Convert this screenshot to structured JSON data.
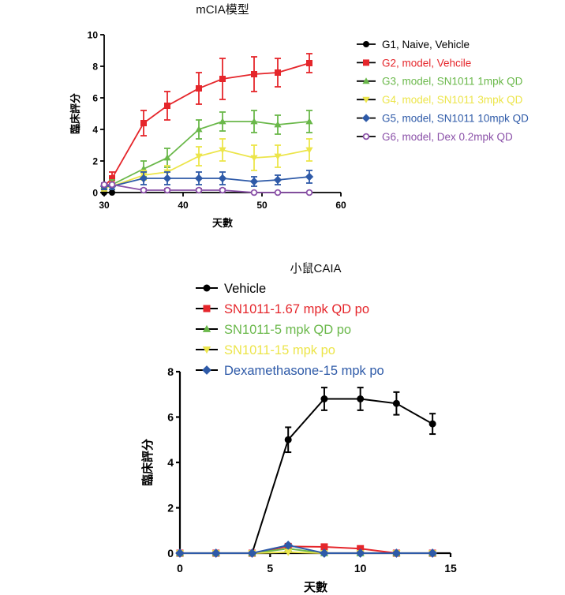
{
  "chart_data": [
    {
      "type": "line",
      "title": "mCIA模型",
      "xlabel": "天數",
      "ylabel": "臨床評分",
      "xlim": [
        30,
        60
      ],
      "ylim": [
        0,
        10
      ],
      "xticks": [
        30,
        40,
        50,
        60
      ],
      "yticks": [
        0,
        2,
        4,
        6,
        8,
        10
      ],
      "legend_position": "right",
      "series": [
        {
          "name": "G1, Naive, Vehicle",
          "color": "#000000",
          "marker": "circle",
          "x": [
            30,
            31
          ],
          "values": [
            0,
            0
          ],
          "err": [
            0,
            0
          ]
        },
        {
          "name": "G2, model, Vehcile",
          "color": "#e5262b",
          "marker": "square",
          "x": [
            30,
            31,
            35,
            38,
            42,
            45,
            49,
            52,
            56
          ],
          "values": [
            0.4,
            0.9,
            4.4,
            5.5,
            6.6,
            7.2,
            7.5,
            7.6,
            8.2
          ],
          "err": [
            0.2,
            0.4,
            0.8,
            0.9,
            1.0,
            1.3,
            1.1,
            0.9,
            0.6
          ]
        },
        {
          "name": "G3, model, SN1011 1mpk QD",
          "color": "#6ab84a",
          "marker": "triangle-up",
          "x": [
            30,
            31,
            35,
            38,
            42,
            45,
            49,
            52,
            56
          ],
          "values": [
            0.4,
            0.5,
            1.5,
            2.2,
            4.0,
            4.5,
            4.5,
            4.3,
            4.5
          ],
          "err": [
            0.2,
            0.3,
            0.5,
            0.6,
            0.6,
            0.6,
            0.7,
            0.6,
            0.7
          ]
        },
        {
          "name": "G4, model, SN1011 3mpk QD",
          "color": "#ece54a",
          "marker": "triangle-down",
          "x": [
            30,
            31,
            35,
            38,
            42,
            45,
            49,
            52,
            56
          ],
          "values": [
            0.3,
            0.4,
            1.1,
            1.3,
            2.3,
            2.7,
            2.2,
            2.3,
            2.7
          ],
          "err": [
            0.2,
            0.2,
            0.3,
            0.4,
            0.6,
            0.7,
            0.8,
            0.7,
            0.7
          ]
        },
        {
          "name": "G5, model, SN1011 10mpk QD",
          "color": "#2e5aa8",
          "marker": "diamond",
          "x": [
            30,
            31,
            35,
            38,
            42,
            45,
            49,
            52,
            56
          ],
          "values": [
            0.4,
            0.4,
            0.9,
            0.9,
            0.9,
            0.9,
            0.7,
            0.8,
            1.0
          ],
          "err": [
            0.2,
            0.2,
            0.4,
            0.4,
            0.4,
            0.4,
            0.3,
            0.3,
            0.4
          ]
        },
        {
          "name": "G6, model, Dex 0.2mpk QD",
          "color": "#8a50a8",
          "marker": "circle-open",
          "x": [
            30,
            31,
            35,
            38,
            42,
            45,
            49,
            52,
            56
          ],
          "values": [
            0.5,
            0.5,
            0.15,
            0.15,
            0.15,
            0.15,
            0,
            0,
            0
          ],
          "err": [
            0.1,
            0.1,
            0.1,
            0.1,
            0.1,
            0.1,
            0,
            0,
            0
          ]
        }
      ]
    },
    {
      "type": "line",
      "title": "小鼠CAIA",
      "xlabel": "天數",
      "ylabel": "臨床評分",
      "xlim": [
        0,
        15
      ],
      "ylim": [
        0,
        8
      ],
      "xticks": [
        0,
        5,
        10,
        15
      ],
      "yticks": [
        0,
        2,
        4,
        6,
        8
      ],
      "legend_position": "top",
      "series": [
        {
          "name": "Vehicle",
          "color": "#000000",
          "marker": "circle",
          "x": [
            0,
            2,
            4,
            6,
            8,
            10,
            12,
            14
          ],
          "values": [
            0,
            0,
            0,
            5.0,
            6.8,
            6.8,
            6.6,
            5.7
          ],
          "err": [
            0,
            0,
            0,
            0.55,
            0.5,
            0.5,
            0.5,
            0.45
          ]
        },
        {
          "name": "SN1011-1.67 mpk QD po",
          "color": "#e5262b",
          "marker": "square",
          "x": [
            0,
            2,
            4,
            6,
            8,
            10,
            12,
            14
          ],
          "values": [
            0,
            0,
            0,
            0.3,
            0.28,
            0.2,
            0,
            0
          ],
          "err": [
            0,
            0,
            0,
            0,
            0,
            0,
            0,
            0
          ]
        },
        {
          "name": "SN1011-5 mpk QD po",
          "color": "#6ab84a",
          "marker": "triangle-up",
          "x": [
            0,
            2,
            4,
            6,
            8,
            10,
            12,
            14
          ],
          "values": [
            0,
            0,
            0,
            0.2,
            0,
            0,
            0,
            0
          ],
          "err": [
            0,
            0,
            0,
            0,
            0,
            0,
            0,
            0
          ]
        },
        {
          "name": "SN1011-15 mpk po",
          "color": "#ece54a",
          "marker": "triangle-down",
          "x": [
            0,
            2,
            4,
            6,
            8,
            10,
            12,
            14
          ],
          "values": [
            0,
            0,
            0,
            0.05,
            0,
            0,
            0,
            0
          ],
          "err": [
            0,
            0,
            0,
            0,
            0,
            0,
            0,
            0
          ]
        },
        {
          "name": "Dexamethasone-15 mpk po",
          "color": "#2e5aa8",
          "marker": "diamond",
          "x": [
            0,
            2,
            4,
            6,
            8,
            10,
            12,
            14
          ],
          "values": [
            0,
            0,
            0,
            0.35,
            0,
            0,
            0,
            0
          ],
          "err": [
            0,
            0,
            0,
            0,
            0,
            0,
            0,
            0
          ]
        }
      ]
    }
  ]
}
